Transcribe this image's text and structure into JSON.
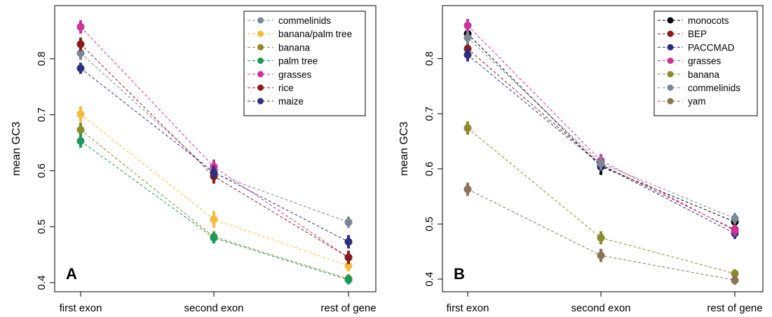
{
  "chart_data": [
    {
      "type": "line",
      "panel_label": "A",
      "ylabel": "mean GC3",
      "categories": [
        "first exon",
        "second exon",
        "rest of gene"
      ],
      "ylim": [
        0.4,
        0.9
      ],
      "yticks": [
        "0.4",
        "0.5",
        "0.6",
        "0.7",
        "0.8"
      ],
      "legend_position": "top-right",
      "series": [
        {
          "name": "commelinids",
          "color": "#7a8794",
          "values": [
            0.81,
            0.595,
            0.508
          ],
          "err": [
            0.012,
            0.012,
            0.01
          ]
        },
        {
          "name": "banana/palm tree",
          "color": "#f9b93a",
          "values": [
            0.701,
            0.513,
            0.43
          ],
          "err": [
            0.014,
            0.015,
            0.01
          ]
        },
        {
          "name": "banana",
          "color": "#8b8b2d",
          "values": [
            0.673,
            0.482,
            0.407
          ],
          "err": [
            0.013,
            0.01,
            0.008
          ]
        },
        {
          "name": "palm tree",
          "color": "#1a9a5a",
          "values": [
            0.653,
            0.48,
            0.405
          ],
          "err": [
            0.012,
            0.01,
            0.008
          ]
        },
        {
          "name": "grasses",
          "color": "#cc3399",
          "values": [
            0.857,
            0.607,
            0.445
          ],
          "err": [
            0.012,
            0.013,
            0.01
          ]
        },
        {
          "name": "rice",
          "color": "#8b1a1a",
          "values": [
            0.826,
            0.59,
            0.445
          ],
          "err": [
            0.012,
            0.013,
            0.012
          ]
        },
        {
          "name": "maize",
          "color": "#2e2e80",
          "values": [
            0.783,
            0.597,
            0.473
          ],
          "err": [
            0.01,
            0.012,
            0.012
          ]
        }
      ]
    },
    {
      "type": "line",
      "panel_label": "B",
      "ylabel": "mean GC3",
      "categories": [
        "first exon",
        "second exon",
        "rest of gene"
      ],
      "ylim": [
        0.38,
        0.88
      ],
      "yticks": [
        "0.4",
        "0.5",
        "0.6",
        "0.7",
        "0.8"
      ],
      "legend_position": "top-right",
      "series": [
        {
          "name": "monocots",
          "color": "#000000",
          "values": [
            0.845,
            0.604,
            0.504
          ],
          "err": [
            0.013,
            0.015,
            0.012
          ]
        },
        {
          "name": "BEP",
          "color": "#8b1a1a",
          "values": [
            0.818,
            0.608,
            0.49
          ],
          "err": [
            0.012,
            0.012,
            0.01
          ]
        },
        {
          "name": "PACCMAD",
          "color": "#2e2e80",
          "values": [
            0.807,
            0.607,
            0.483
          ],
          "err": [
            0.012,
            0.012,
            0.01
          ]
        },
        {
          "name": "grasses",
          "color": "#cc3399",
          "values": [
            0.86,
            0.615,
            0.488
          ],
          "err": [
            0.012,
            0.012,
            0.01
          ]
        },
        {
          "name": "banana",
          "color": "#8b8b2d",
          "values": [
            0.674,
            0.475,
            0.41
          ],
          "err": [
            0.012,
            0.012,
            0.008
          ]
        },
        {
          "name": "commelinids",
          "color": "#7a8794",
          "values": [
            0.838,
            0.61,
            0.51
          ],
          "err": [
            0.012,
            0.012,
            0.01
          ]
        },
        {
          "name": "yam",
          "color": "#8b7355",
          "values": [
            0.563,
            0.443,
            0.398
          ],
          "err": [
            0.012,
            0.012,
            0.008
          ]
        }
      ]
    }
  ]
}
